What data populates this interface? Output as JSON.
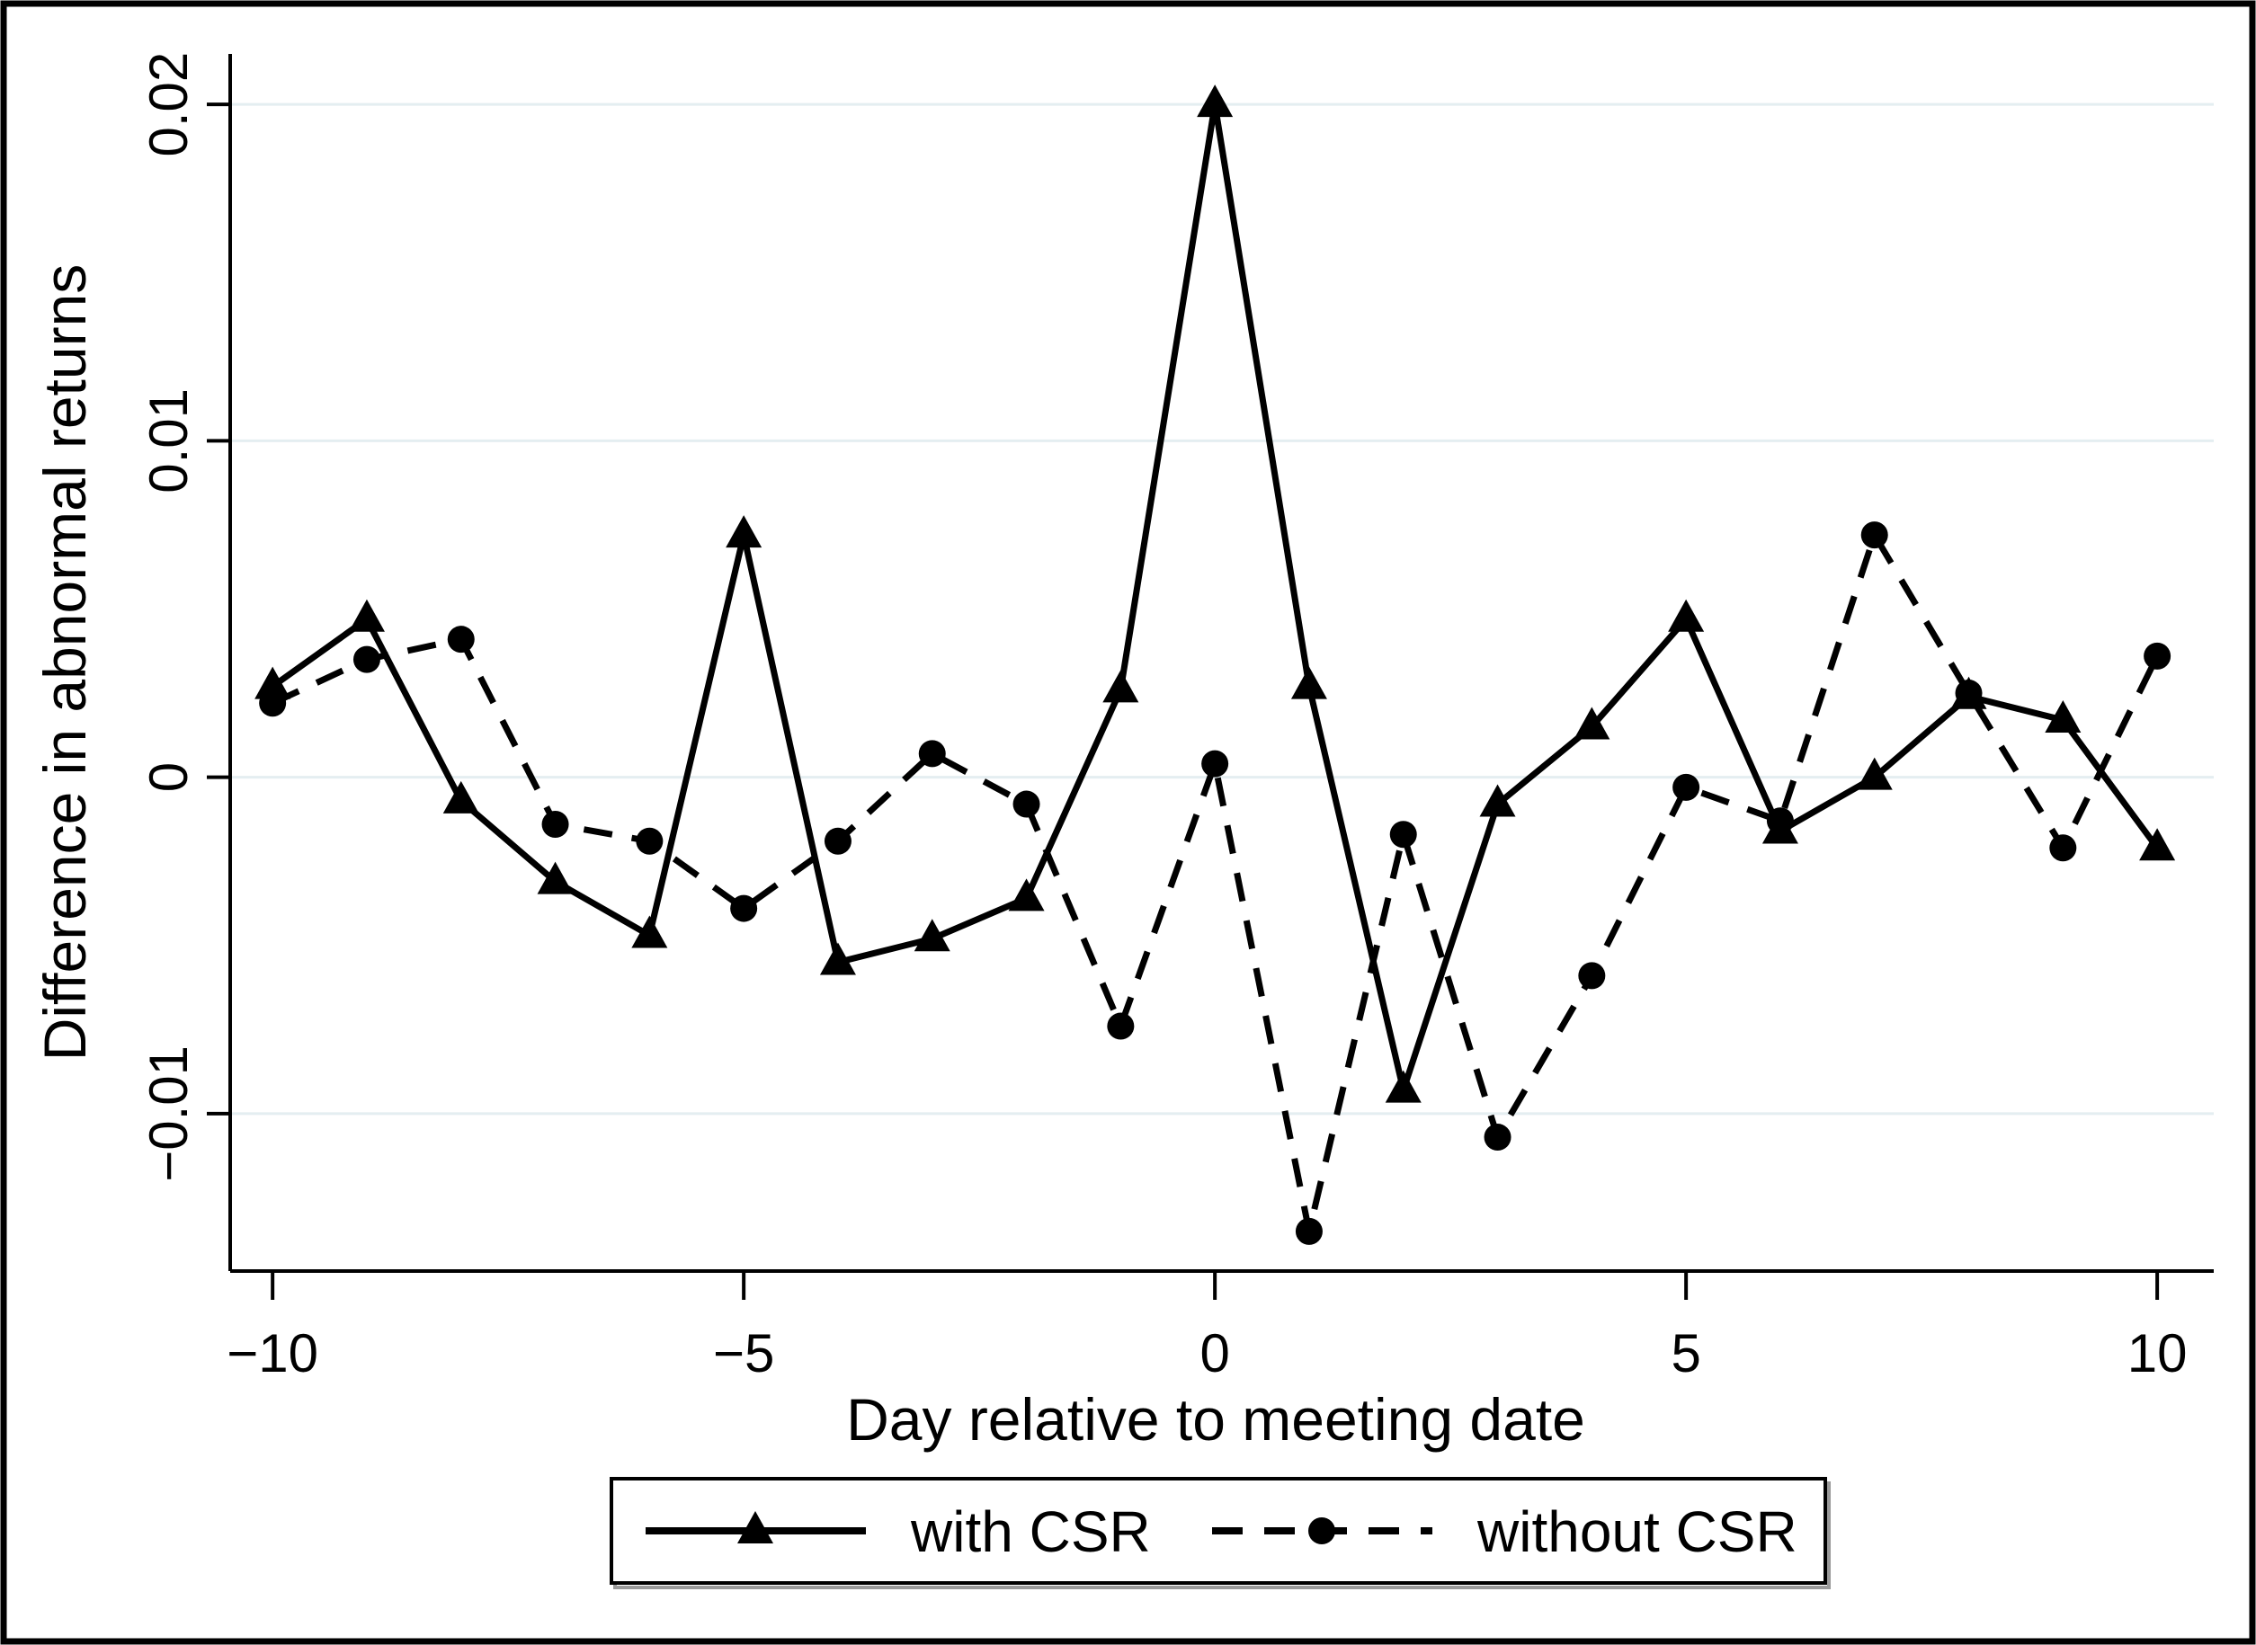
{
  "figure": {
    "background": "#ffffff",
    "border_color": "#000000",
    "grid_color": "#e4eef1",
    "line_color": "#000000",
    "text_color": "#000000"
  },
  "chart_data": {
    "type": "line",
    "title": "",
    "xlabel": "Day relative to meeting date",
    "ylabel": "Difference in abnormal returns",
    "x": [
      -10,
      -9,
      -8,
      -7,
      -6,
      -5,
      -4,
      -3,
      -2,
      -1,
      0,
      1,
      2,
      3,
      4,
      5,
      6,
      7,
      8,
      9,
      10
    ],
    "series": [
      {
        "name": "with CSR",
        "marker": "triangle",
        "line_style": "solid",
        "values": [
          0.0027,
          0.0047,
          -0.0007,
          -0.0031,
          -0.0047,
          0.0072,
          -0.0055,
          -0.0048,
          -0.0036,
          0.0026,
          0.02,
          0.0027,
          -0.0093,
          -0.0008,
          0.0015,
          0.0047,
          -0.0016,
          0.0,
          0.0024,
          0.0017,
          -0.0021
        ]
      },
      {
        "name": "without CSR",
        "marker": "circle",
        "line_style": "dashed",
        "values": [
          0.0022,
          0.0035,
          0.0041,
          -0.0014,
          -0.0019,
          -0.0039,
          -0.0019,
          0.0007,
          -0.0008,
          -0.0074,
          0.0004,
          -0.0135,
          -0.0017,
          -0.0107,
          -0.0059,
          -0.0003,
          -0.0013,
          0.0072,
          0.0025,
          -0.0021,
          0.0036
        ]
      }
    ],
    "x_ticks": [
      -10,
      -5,
      0,
      5,
      10
    ],
    "x_tick_labels": [
      "−10",
      "−5",
      "0",
      "5",
      "10"
    ],
    "y_ticks": [
      0.02,
      0.01,
      0,
      -0.01
    ],
    "y_tick_labels": [
      "0.02",
      "0.01",
      "0",
      "−0.01"
    ],
    "xlim": [
      -10.45,
      10.6
    ],
    "ylim": [
      -0.01468,
      0.0215
    ],
    "grid": "horizontal",
    "legend_position": "bottom-center"
  },
  "legend": {
    "items": [
      {
        "label": "with CSR",
        "marker": "triangle-marker",
        "line": "solid"
      },
      {
        "label": "without CSR",
        "marker": "circle-marker",
        "line": "dashed"
      }
    ]
  }
}
